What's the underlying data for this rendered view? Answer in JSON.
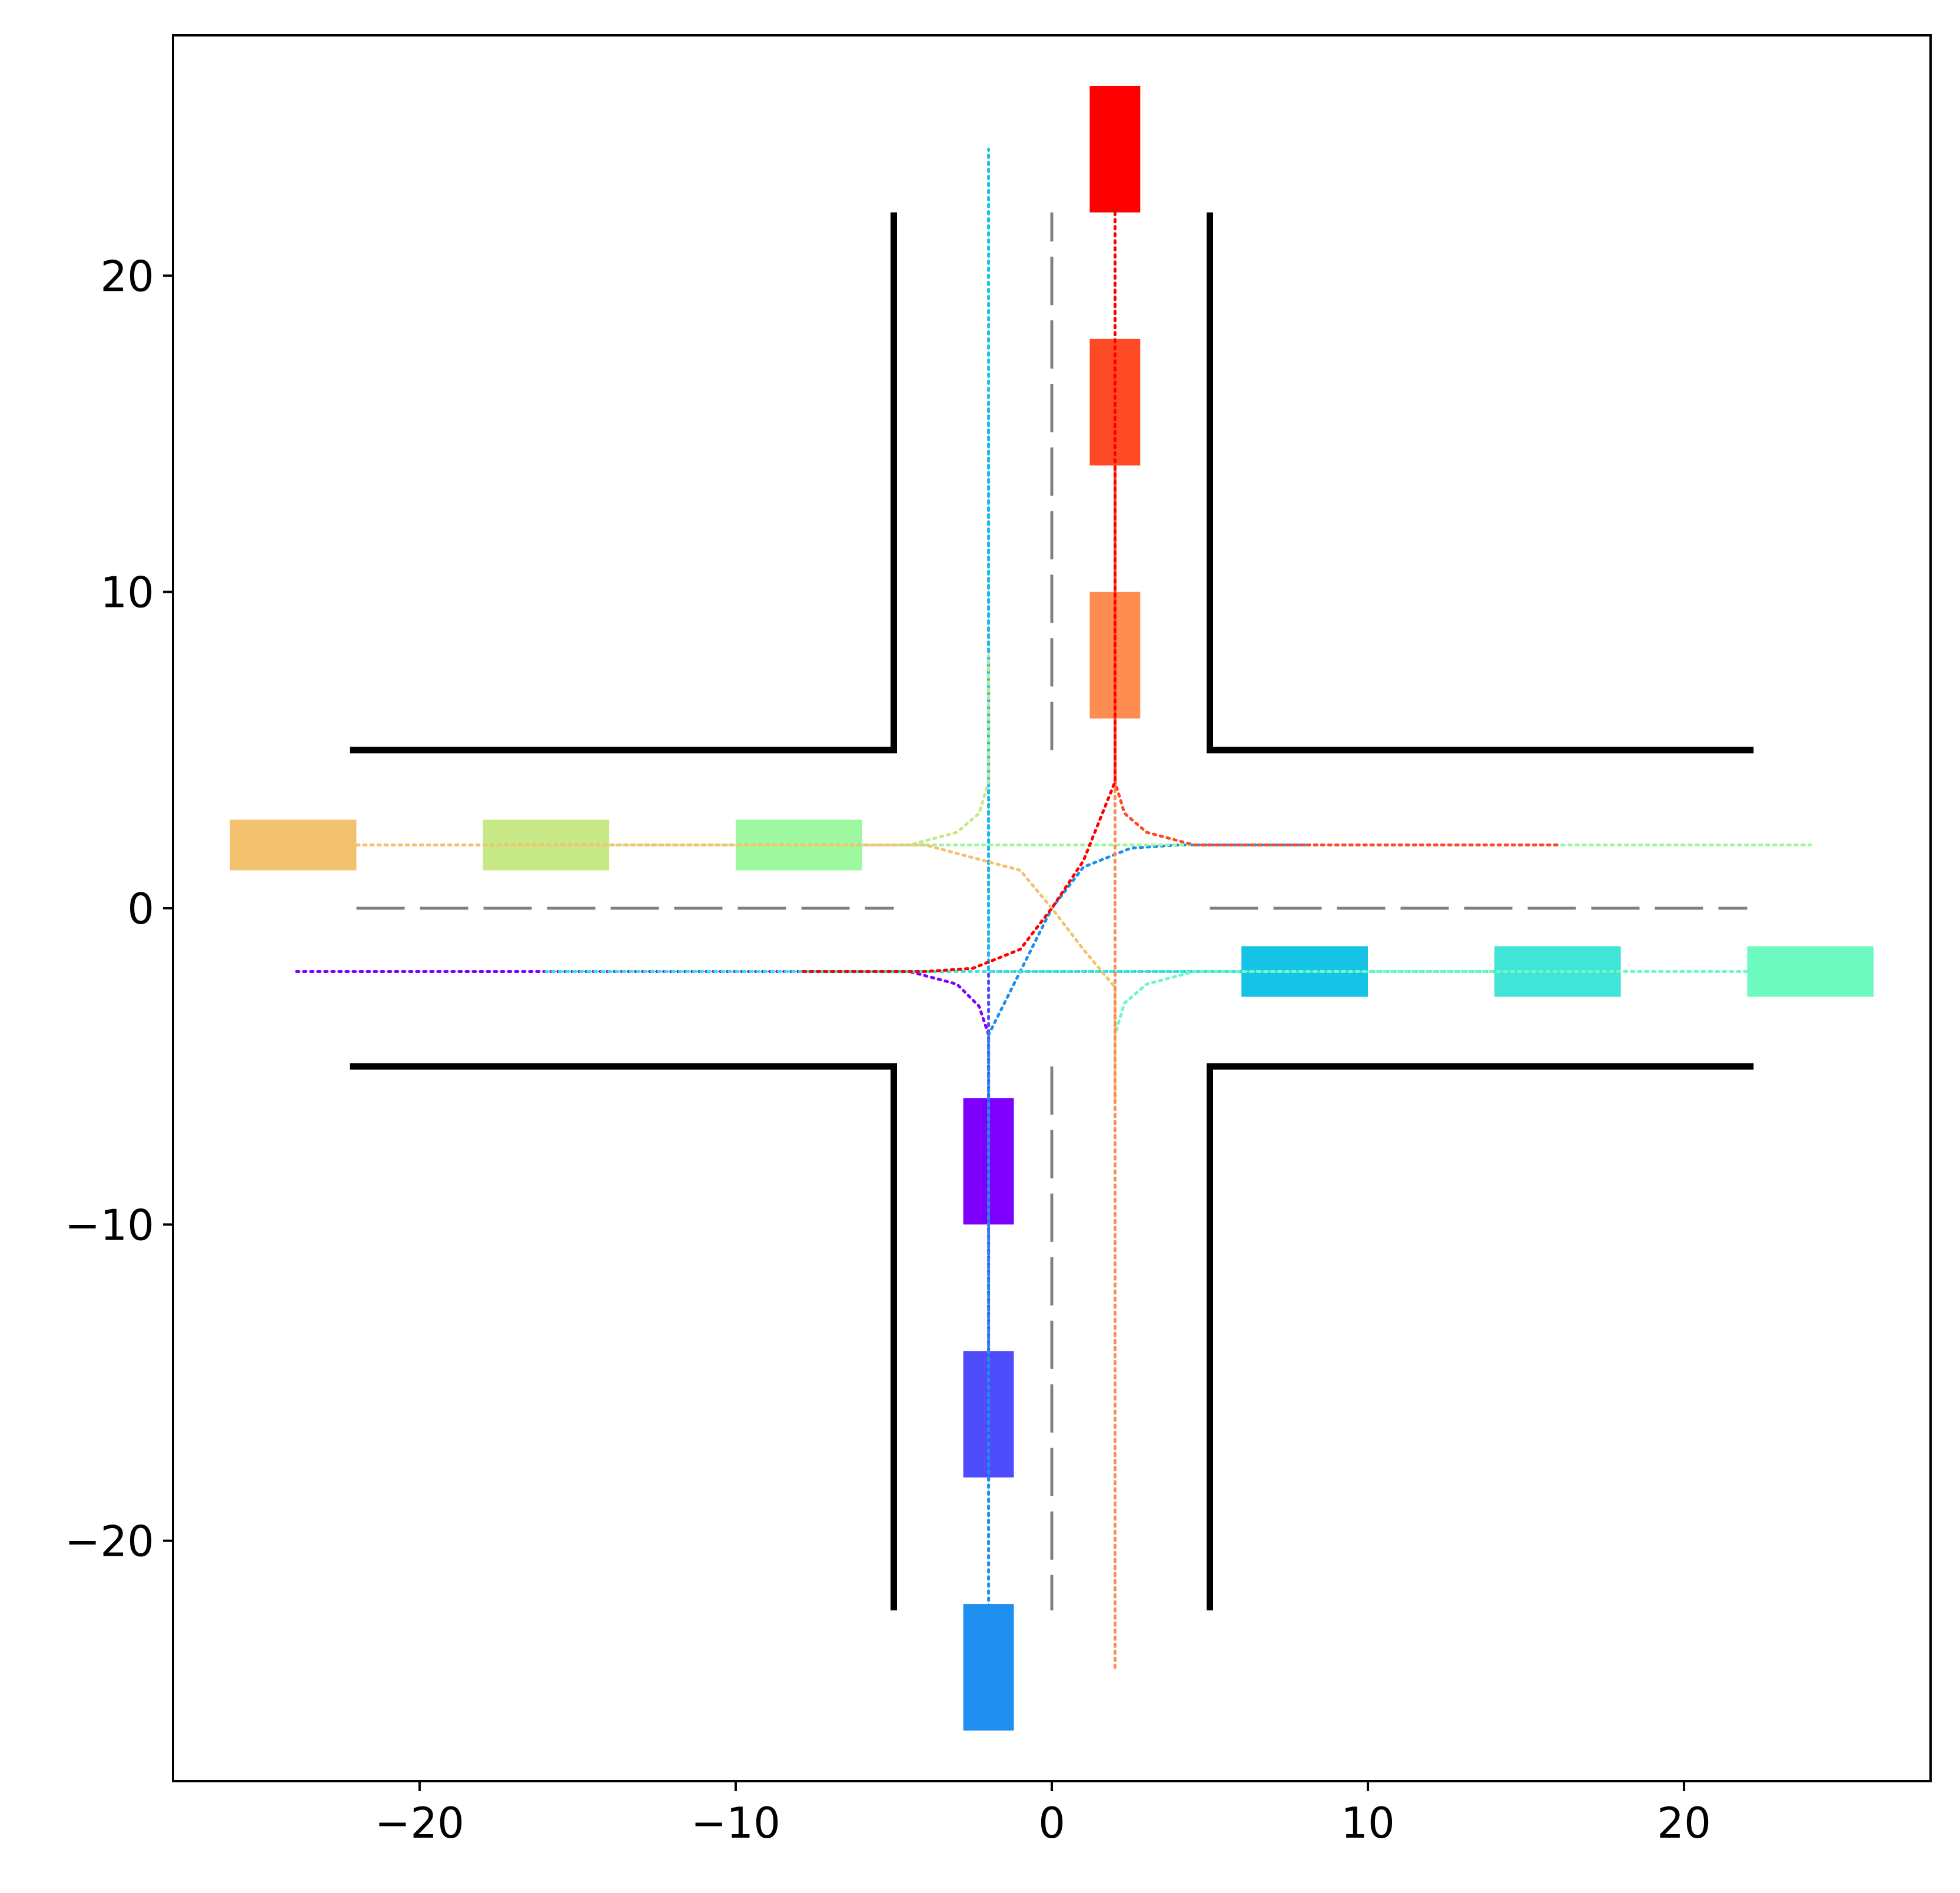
{
  "chart_data": {
    "type": "scatter",
    "title": "",
    "xlabel": "",
    "ylabel": "",
    "xlim": [
      -27.8,
      27.8
    ],
    "ylim": [
      -27.6,
      27.6
    ],
    "xticks": [
      -20,
      -10,
      0,
      10,
      20
    ],
    "xtick_labels": [
      "−20",
      "−10",
      "0",
      "10",
      "20"
    ],
    "yticks": [
      -20,
      -10,
      0,
      10,
      20
    ],
    "ytick_labels": [
      "−20",
      "−10",
      "0",
      "10",
      "20"
    ],
    "grid": false,
    "legend": "none",
    "road_edges": [
      [
        [
          -22.2,
          5
        ],
        [
          -5,
          5
        ],
        [
          -5,
          22
        ]
      ],
      [
        [
          22.2,
          5
        ],
        [
          5,
          5
        ],
        [
          5,
          22
        ]
      ],
      [
        [
          -22.2,
          -5
        ],
        [
          -5,
          -5
        ],
        [
          -5,
          -22.2
        ]
      ],
      [
        [
          22.2,
          -5
        ],
        [
          5,
          -5
        ],
        [
          5,
          -22.2
        ]
      ]
    ],
    "center_lines": [
      [
        [
          -22,
          0
        ],
        [
          -5,
          0
        ]
      ],
      [
        [
          5,
          0
        ],
        [
          22,
          0
        ]
      ],
      [
        [
          0,
          5
        ],
        [
          0,
          22
        ]
      ],
      [
        [
          0,
          -5
        ],
        [
          0,
          -22.2
        ]
      ]
    ],
    "vehicles": [
      {
        "x": -2,
        "y": -8,
        "orient": "v",
        "color": "#8000ff"
      },
      {
        "x": -2,
        "y": -16,
        "orient": "v",
        "color": "#4f4cfb"
      },
      {
        "x": -2,
        "y": -24,
        "orient": "v",
        "color": "#1e8fee"
      },
      {
        "x": 8,
        "y": -2,
        "orient": "h",
        "color": "#15c3e6"
      },
      {
        "x": 16,
        "y": -2,
        "orient": "h",
        "color": "#40e5d8"
      },
      {
        "x": 24,
        "y": -2,
        "orient": "h",
        "color": "#6dfac0"
      },
      {
        "x": -8,
        "y": 2,
        "orient": "h",
        "color": "#9ef8a0"
      },
      {
        "x": -16,
        "y": 2,
        "orient": "h",
        "color": "#c6e886"
      },
      {
        "x": -24,
        "y": 2,
        "orient": "h",
        "color": "#f2c26e"
      },
      {
        "x": 2,
        "y": 8,
        "orient": "v",
        "color": "#ff8c50"
      },
      {
        "x": 2,
        "y": 16,
        "orient": "v",
        "color": "#ff4a26"
      },
      {
        "x": 2,
        "y": 24,
        "orient": "v",
        "color": "#ff0000"
      }
    ],
    "trajectories": [
      {
        "color": "#8000ff",
        "points": [
          [
            -2,
            -8
          ],
          [
            -2,
            -4
          ],
          [
            -2.3,
            -3.1
          ],
          [
            -3,
            -2.4
          ],
          [
            -4.5,
            -2
          ],
          [
            -24,
            -2
          ]
        ]
      },
      {
        "color": "#4f4cfb",
        "points": [
          [
            -2,
            -16
          ],
          [
            -2,
            16
          ]
        ]
      },
      {
        "color": "#1e8fee",
        "points": [
          [
            -2,
            -23
          ],
          [
            -2,
            -4
          ],
          [
            -1,
            -2
          ],
          [
            0,
            0
          ],
          [
            1,
            1.3
          ],
          [
            2.5,
            1.9
          ],
          [
            4,
            2
          ],
          [
            8,
            2
          ]
        ]
      },
      {
        "color": "#15c3e6",
        "points": [
          [
            8,
            -2
          ],
          [
            -2,
            -2
          ],
          [
            -2,
            24
          ]
        ]
      },
      {
        "color": "#40e5d8",
        "points": [
          [
            16,
            -2
          ],
          [
            -16,
            -2
          ]
        ]
      },
      {
        "color": "#6dfac0",
        "points": [
          [
            24,
            -2
          ],
          [
            4.5,
            -2
          ],
          [
            3,
            -2.4
          ],
          [
            2.3,
            -3
          ],
          [
            2,
            -4
          ]
        ]
      },
      {
        "color": "#9ef8a0",
        "points": [
          [
            -8,
            2
          ],
          [
            24,
            2
          ]
        ]
      },
      {
        "color": "#c6e886",
        "points": [
          [
            -16,
            2
          ],
          [
            -4.5,
            2
          ],
          [
            -3,
            2.4
          ],
          [
            -2.3,
            3
          ],
          [
            -2,
            4
          ],
          [
            -2,
            8
          ]
        ]
      },
      {
        "color": "#f2c26e",
        "points": [
          [
            -24,
            2
          ],
          [
            -4,
            2
          ],
          [
            -1,
            1.2
          ],
          [
            0,
            0
          ],
          [
            1,
            -1.3
          ],
          [
            2,
            -2.5
          ],
          [
            2,
            -6
          ]
        ]
      },
      {
        "color": "#ff8c50",
        "points": [
          [
            2,
            8
          ],
          [
            2,
            -24
          ]
        ]
      },
      {
        "color": "#ff4a26",
        "points": [
          [
            2,
            17
          ],
          [
            2,
            4
          ],
          [
            2.3,
            3
          ],
          [
            3,
            2.4
          ],
          [
            4.5,
            2
          ],
          [
            16,
            2
          ]
        ]
      },
      {
        "color": "#ff0000",
        "points": [
          [
            2,
            22
          ],
          [
            2,
            4
          ],
          [
            1,
            1.5
          ],
          [
            0,
            0
          ],
          [
            -1,
            -1.3
          ],
          [
            -2.5,
            -1.9
          ],
          [
            -4,
            -2
          ],
          [
            -8,
            -2
          ]
        ]
      }
    ]
  }
}
